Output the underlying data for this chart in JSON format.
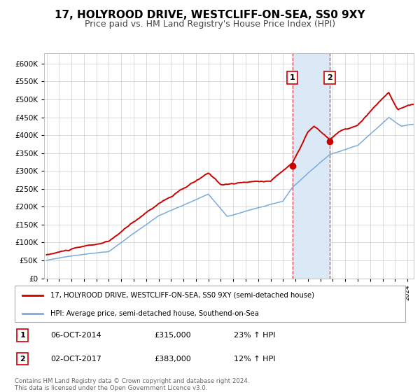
{
  "title": "17, HOLYROOD DRIVE, WESTCLIFF-ON-SEA, SS0 9XY",
  "subtitle": "Price paid vs. HM Land Registry's House Price Index (HPI)",
  "hpi_label": "HPI: Average price, semi-detached house, Southend-on-Sea",
  "property_label": "17, HOLYROOD DRIVE, WESTCLIFF-ON-SEA, SS0 9XY (semi-detached house)",
  "sale1_date": "06-OCT-2014",
  "sale1_price": 315000,
  "sale1_pct": "23%",
  "sale2_date": "02-OCT-2017",
  "sale2_price": 383000,
  "sale2_pct": "12%",
  "footer": "Contains HM Land Registry data © Crown copyright and database right 2024.\nThis data is licensed under the Open Government Licence v3.0.",
  "red_color": "#cc0000",
  "blue_color": "#7aabdb",
  "shade_color": "#dbe9f7",
  "grid_color": "#cccccc",
  "bg_color": "#ffffff",
  "xmin": 1995,
  "xmax": 2024.5,
  "sale1_x": 2014.75,
  "sale2_x": 2017.75
}
